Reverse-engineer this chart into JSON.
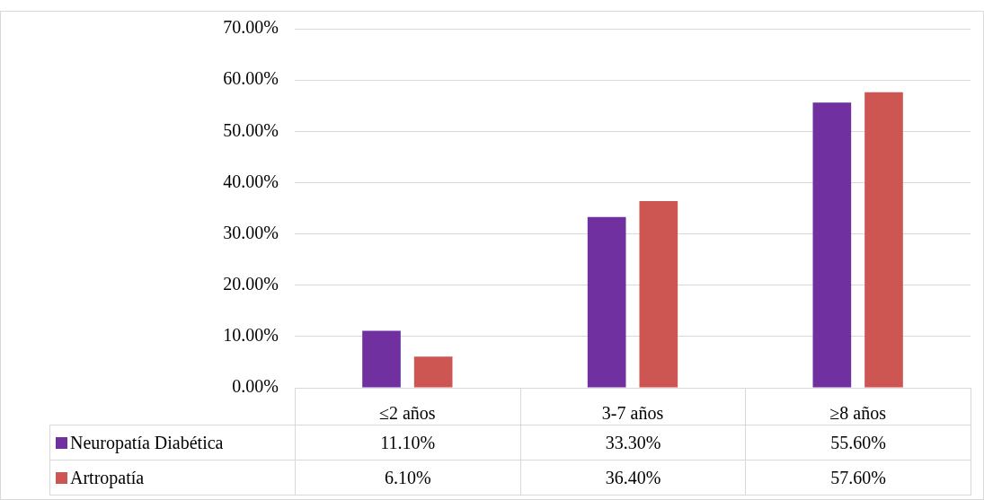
{
  "chart_data": {
    "type": "bar",
    "categories": [
      "≤2 años",
      "3-7 años",
      "≥8 años"
    ],
    "series": [
      {
        "name": "Neuropatía Diabética",
        "color": "#7030a0",
        "values": [
          11.1,
          33.3,
          55.6
        ],
        "value_labels": [
          "11.10%",
          "33.30%",
          "55.60%"
        ]
      },
      {
        "name": "Artropatía",
        "color": "#cd5653",
        "values": [
          6.1,
          36.4,
          57.6
        ],
        "value_labels": [
          "6.10%",
          "36.40%",
          "57.60%"
        ]
      }
    ],
    "ylim": [
      0,
      70
    ],
    "yticks": [
      {
        "value": 0,
        "label": "0.00%"
      },
      {
        "value": 10,
        "label": "10.00%"
      },
      {
        "value": 20,
        "label": "20.00%"
      },
      {
        "value": 30,
        "label": "30.00%"
      },
      {
        "value": 40,
        "label": "40.00%"
      },
      {
        "value": 50,
        "label": "50.00%"
      },
      {
        "value": 60,
        "label": "60.00%"
      },
      {
        "value": 70,
        "label": "70.00%"
      }
    ],
    "grid": "y",
    "legend": "bottom left"
  }
}
